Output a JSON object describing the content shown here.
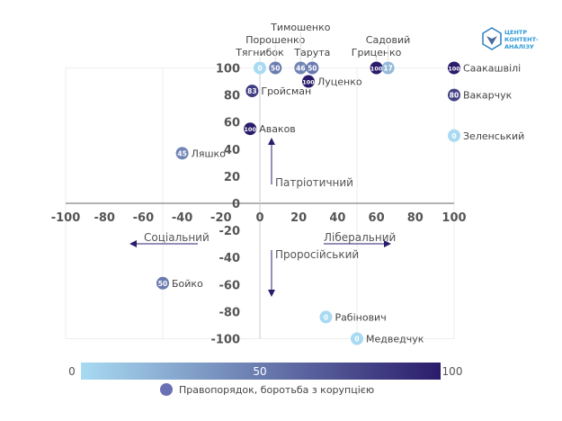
{
  "chart_data": {
    "type": "scatter",
    "xlim": [
      -100,
      100
    ],
    "ylim": [
      -100,
      100
    ],
    "xticks": [
      -100,
      -80,
      -60,
      -40,
      -20,
      0,
      20,
      40,
      60,
      80,
      100
    ],
    "yticks": [
      100,
      80,
      60,
      40,
      20,
      0,
      -20,
      -40,
      -60,
      -80,
      -100
    ],
    "axis_labels": {
      "up": "Патріотичний",
      "down": "Проросійський",
      "left": "Соціальний",
      "right": "Ліберальний"
    },
    "points": [
      {
        "name": "Тягнибок",
        "x": 0,
        "y": 100,
        "value": 0,
        "label_pos": "rotated"
      },
      {
        "name": "Порошенко",
        "x": 8,
        "y": 100,
        "value": 50,
        "label_pos": "rotated"
      },
      {
        "name": "Тимошенко",
        "x": 21,
        "y": 100,
        "value": 46,
        "label_pos": "rotated"
      },
      {
        "name": "Тарута",
        "x": 27,
        "y": 100,
        "value": 50,
        "label_pos": "rotated"
      },
      {
        "name": "Луценко",
        "x": 25,
        "y": 90,
        "value": 100,
        "label_pos": "rotated-right"
      },
      {
        "name": "Гриценко",
        "x": 60,
        "y": 100,
        "value": 100,
        "label_pos": "rotated"
      },
      {
        "name": "Садовий",
        "x": 66,
        "y": 100,
        "value": 17,
        "label_pos": "rotated"
      },
      {
        "name": "Саакашвілі",
        "x": 100,
        "y": 100,
        "value": 100,
        "label_pos": "right"
      },
      {
        "name": "Вакарчук",
        "x": 100,
        "y": 80,
        "value": 80,
        "label_pos": "right"
      },
      {
        "name": "Зеленський",
        "x": 100,
        "y": 50,
        "value": 0,
        "label_pos": "right"
      },
      {
        "name": "Гройсман",
        "x": -4,
        "y": 83,
        "value": 83,
        "label_pos": "right"
      },
      {
        "name": "Аваков",
        "x": -5,
        "y": 55,
        "value": 100,
        "label_pos": "right"
      },
      {
        "name": "Ляшко",
        "x": -40,
        "y": 37,
        "value": 45,
        "label_pos": "right"
      },
      {
        "name": "Бойко",
        "x": -50,
        "y": -59,
        "value": 50,
        "label_pos": "right"
      },
      {
        "name": "Рабінович",
        "x": 34,
        "y": -84,
        "value": 0,
        "label_pos": "right"
      },
      {
        "name": "Медведчук",
        "x": 50,
        "y": -100,
        "value": 0,
        "label_pos": "right"
      }
    ],
    "colorbar": {
      "min": "0",
      "mid": "50",
      "max": "100",
      "low_color": "#a8daf2",
      "high_color": "#2b1c6b"
    },
    "legend": "Правопорядок, боротьба з корупцією",
    "legend_color": "#6a70b4"
  },
  "logo": "ЦЕНТР КОНТЕНТ-АНАЛІЗУ"
}
